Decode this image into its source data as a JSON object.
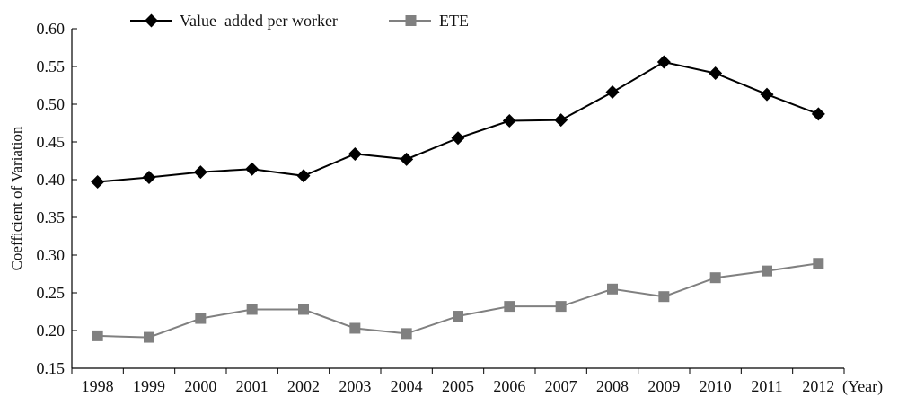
{
  "chart_data": {
    "type": "line",
    "title": "",
    "xlabel": "",
    "x_unit_label": "(Year)",
    "ylabel": "Coefficient of Variation",
    "ylim": [
      0.15,
      0.6
    ],
    "yticks": [
      "0.15",
      "0.20",
      "0.25",
      "0.30",
      "0.35",
      "0.40",
      "0.45",
      "0.50",
      "0.55",
      "0.60"
    ],
    "categories": [
      "1998",
      "1999",
      "2000",
      "2001",
      "2002",
      "2003",
      "2004",
      "2005",
      "2006",
      "2007",
      "2008",
      "2009",
      "2010",
      "2011",
      "2012"
    ],
    "legend_position": "top",
    "grid": false,
    "series": [
      {
        "name": "Value–added per worker",
        "color": "#000000",
        "marker": "diamond",
        "values": [
          0.397,
          0.403,
          0.41,
          0.414,
          0.405,
          0.434,
          0.427,
          0.455,
          0.478,
          0.479,
          0.516,
          0.556,
          0.541,
          0.513,
          0.487
        ]
      },
      {
        "name": "ETE",
        "color": "#808080",
        "marker": "square",
        "values": [
          0.193,
          0.191,
          0.216,
          0.228,
          0.228,
          0.203,
          0.196,
          0.219,
          0.232,
          0.232,
          0.255,
          0.245,
          0.27,
          0.279,
          0.289
        ]
      }
    ]
  }
}
